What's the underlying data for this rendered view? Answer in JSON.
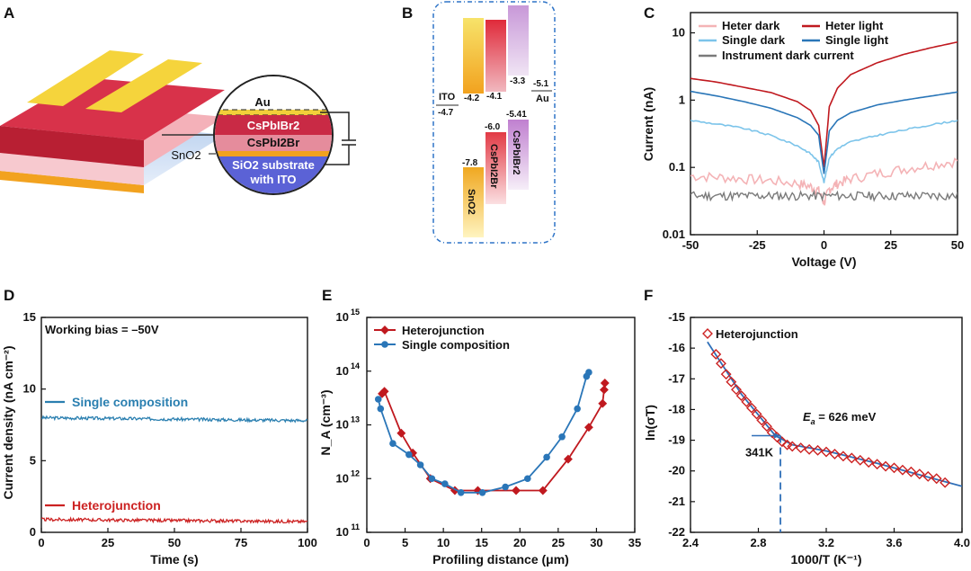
{
  "panels": {
    "A": "A",
    "B": "B",
    "C": "C",
    "D": "D",
    "E": "E",
    "F": "F"
  },
  "device": {
    "layers": [
      "Au",
      "CsPbIBr2",
      "CsPbI2Br",
      "SiO2 substrate",
      "with ITO"
    ],
    "snO2": "SnO2",
    "layer_colors": {
      "au": "#f2cf3a",
      "top": "#c92a45",
      "mid": "#e58c9c",
      "sub": "#5b62d6"
    }
  },
  "band": {
    "materials": [
      "ITO",
      "Au",
      "SnO2",
      "CsPbI2Br",
      "CsPbIBr2"
    ],
    "levels": [
      "-4.2",
      "-4.1",
      "-3.3",
      "-5.1",
      "-4.7",
      "-6.0",
      "-5.41",
      "-7.8"
    ]
  },
  "chart_data": [
    {
      "id": "C",
      "type": "line",
      "xlabel": "Voltage (V)",
      "ylabel": "Current (nA)",
      "xlim": [
        -50,
        50
      ],
      "ylim": [
        0.01,
        20
      ],
      "yscale": "log",
      "xticks": [
        "-50",
        "-25",
        "0",
        "25",
        "50"
      ],
      "yticks": [
        "0.01",
        "0.1",
        "1",
        "10"
      ],
      "series": [
        {
          "name": "Heter dark",
          "color": "#f4b3b6",
          "x": [
            -50,
            -40,
            -30,
            -20,
            -10,
            -5,
            -2,
            0,
            2,
            5,
            10,
            20,
            30,
            40,
            50
          ],
          "values": [
            0.075,
            0.072,
            0.068,
            0.064,
            0.058,
            0.052,
            0.045,
            0.03,
            0.048,
            0.058,
            0.068,
            0.082,
            0.095,
            0.11,
            0.125
          ]
        },
        {
          "name": "Heter light",
          "color": "#c0191f",
          "x": [
            -50,
            -40,
            -30,
            -20,
            -10,
            -5,
            -2,
            0,
            2,
            5,
            10,
            20,
            30,
            40,
            50
          ],
          "values": [
            2.1,
            1.85,
            1.55,
            1.3,
            0.95,
            0.7,
            0.42,
            0.1,
            0.8,
            1.5,
            2.4,
            3.6,
            4.8,
            6.0,
            7.3
          ]
        },
        {
          "name": "Single dark",
          "color": "#7cc4ea",
          "x": [
            -50,
            -40,
            -30,
            -20,
            -10,
            -5,
            -2,
            0,
            2,
            5,
            10,
            20,
            30,
            40,
            50
          ],
          "values": [
            0.5,
            0.44,
            0.38,
            0.3,
            0.21,
            0.16,
            0.12,
            0.06,
            0.14,
            0.19,
            0.24,
            0.3,
            0.36,
            0.43,
            0.5
          ]
        },
        {
          "name": "Single light",
          "color": "#2a76b8",
          "x": [
            -50,
            -40,
            -30,
            -20,
            -10,
            -5,
            -2,
            0,
            2,
            5,
            10,
            20,
            30,
            40,
            50
          ],
          "values": [
            1.35,
            1.15,
            0.95,
            0.76,
            0.55,
            0.42,
            0.3,
            0.08,
            0.35,
            0.5,
            0.65,
            0.85,
            1.0,
            1.15,
            1.32
          ]
        },
        {
          "name": "Instrument dark current",
          "color": "#7a7a7a",
          "x": [
            -50,
            50
          ],
          "values": [
            0.038,
            0.038
          ]
        }
      ]
    },
    {
      "id": "D",
      "type": "line",
      "xlabel": "Time (s)",
      "ylabel": "Current density (nA cm⁻²)",
      "xlim": [
        0,
        100
      ],
      "ylim": [
        0,
        15
      ],
      "xticks": [
        "0",
        "25",
        "50",
        "75",
        "100"
      ],
      "yticks": [
        "0",
        "5",
        "10",
        "15"
      ],
      "annotation": "Working bias = –50V",
      "series": [
        {
          "name": "Single composition",
          "color": "#2a7fb0",
          "x": [
            0,
            100
          ],
          "values": [
            8.0,
            7.8
          ]
        },
        {
          "name": "Heterojunction",
          "color": "#cc2222",
          "x": [
            0,
            100
          ],
          "values": [
            0.9,
            0.75
          ]
        }
      ]
    },
    {
      "id": "E",
      "type": "line",
      "xlabel": "Profiling distance (μm)",
      "ylabel": "N_A (cm⁻³)",
      "xlim": [
        0,
        35
      ],
      "ylim": [
        100000000000.0,
        1000000000000000.0
      ],
      "yscale": "log",
      "xticks": [
        "0",
        "5",
        "10",
        "15",
        "20",
        "25",
        "30",
        "35"
      ],
      "yticks": [
        "10",
        "10",
        "10",
        "10",
        "10"
      ],
      "ytick_exps": [
        "11",
        "12",
        "13",
        "14",
        "15"
      ],
      "series": [
        {
          "name": "Heterojunction",
          "color": "#c0191f",
          "x": [
            2,
            2.3,
            4.5,
            6.0,
            8.3,
            11.5,
            14.5,
            19.5,
            23,
            26.3,
            29,
            30.8,
            31.0,
            31.1
          ],
          "values": [
            38000000000000.0,
            42000000000000.0,
            7000000000000.0,
            3000000000000.0,
            1000000000000.0,
            600000000000.0,
            600000000000.0,
            600000000000.0,
            600000000000.0,
            2300000000000.0,
            9000000000000.0,
            25000000000000.0,
            45000000000000.0,
            60000000000000.0
          ]
        },
        {
          "name": "Single composition",
          "color": "#2a76b8",
          "x": [
            1.5,
            1.8,
            3.4,
            5.5,
            7.0,
            8.5,
            10.2,
            12.3,
            15.1,
            18.1,
            21.0,
            23.5,
            25.5,
            27.5,
            28.7,
            29.0
          ],
          "values": [
            30000000000000.0,
            20000000000000.0,
            4500000000000.0,
            2800000000000.0,
            1800000000000.0,
            1000000000000.0,
            800000000000.0,
            550000000000.0,
            550000000000.0,
            700000000000.0,
            1000000000000.0,
            2500000000000.0,
            6000000000000.0,
            20000000000000.0,
            80000000000000.0,
            95000000000000.0
          ]
        }
      ]
    },
    {
      "id": "F",
      "type": "scatter",
      "xlabel": "1000/T (K⁻¹)",
      "ylabel": "ln(σT)",
      "xlim": [
        2.4,
        4.0
      ],
      "ylim": [
        -22,
        -15
      ],
      "xticks": [
        "2.4",
        "2.8",
        "3.2",
        "3.6",
        "4.0"
      ],
      "yticks": [
        "-22",
        "-21",
        "-20",
        "-19",
        "-18",
        "-17",
        "-16",
        "-15"
      ],
      "legend": "Heterojunction",
      "fit_label": "E",
      "fit_label_sub": "a",
      "fit_value": " = 626 meV",
      "marker_label": "341K",
      "series": [
        {
          "name": "Heterojunction",
          "color": "#cc2222",
          "x": [
            2.55,
            2.58,
            2.61,
            2.64,
            2.67,
            2.7,
            2.73,
            2.76,
            2.79,
            2.82,
            2.85,
            2.88,
            2.91,
            2.94,
            2.97,
            3.0,
            3.05,
            3.1,
            3.15,
            3.2,
            3.25,
            3.3,
            3.35,
            3.4,
            3.45,
            3.5,
            3.55,
            3.6,
            3.65,
            3.7,
            3.75,
            3.8,
            3.85,
            3.9
          ],
          "values": [
            -16.2,
            -16.5,
            -16.85,
            -17.1,
            -17.35,
            -17.55,
            -17.75,
            -17.95,
            -18.15,
            -18.35,
            -18.55,
            -18.75,
            -18.9,
            -19.05,
            -19.15,
            -19.2,
            -19.25,
            -19.3,
            -19.33,
            -19.38,
            -19.45,
            -19.52,
            -19.58,
            -19.65,
            -19.72,
            -19.78,
            -19.85,
            -19.9,
            -19.97,
            -20.03,
            -20.1,
            -20.18,
            -20.25,
            -20.38
          ]
        },
        {
          "name": "Fit",
          "color": "#2f6fb8",
          "x": [
            2.5,
            2.7,
            2.9,
            3.0,
            3.2,
            3.5,
            4.0
          ],
          "values": [
            -15.8,
            -17.5,
            -18.85,
            -19.15,
            -19.35,
            -19.75,
            -20.5
          ]
        }
      ]
    }
  ]
}
